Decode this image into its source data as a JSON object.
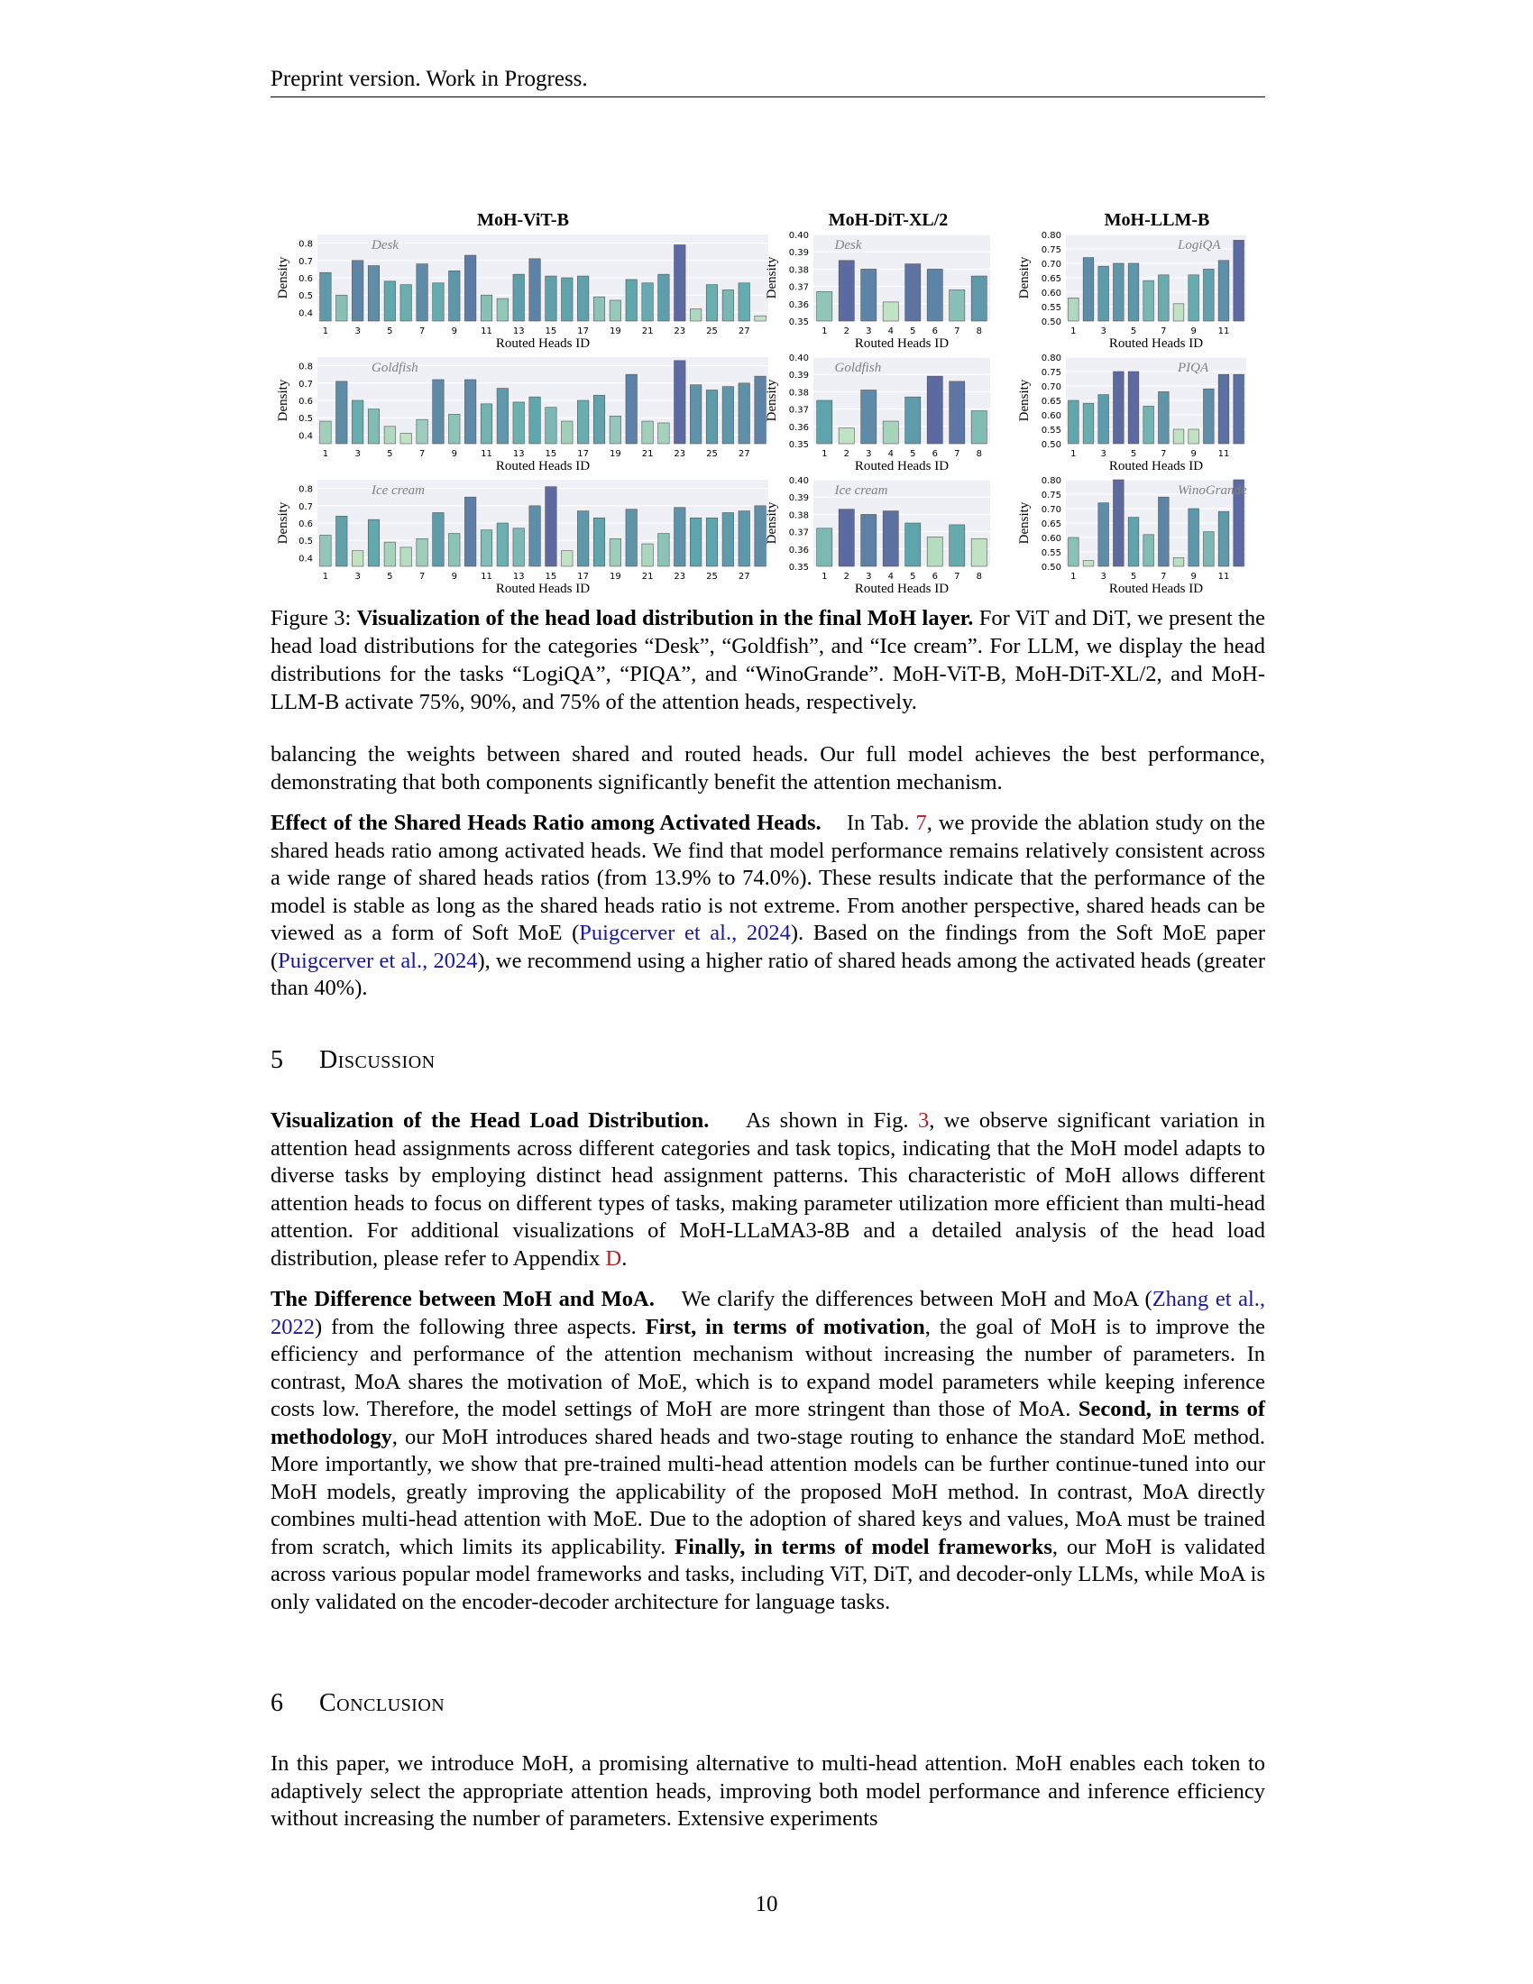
{
  "header": {
    "text": "Preprint version. Work in Progress."
  },
  "figure": {
    "xlabel": "Routed Heads ID",
    "ylabel": "Density",
    "column_titles": [
      "MoH-ViT-B",
      "MoH-DiT-XL/2",
      "MoH-LLM-B"
    ]
  },
  "chart_data": [
    {
      "type": "bar",
      "title": "MoH-ViT-B",
      "subtitle": "Desk",
      "xlabel": "Routed Heads ID",
      "ylabel": "Density",
      "x": [
        1,
        2,
        3,
        4,
        5,
        6,
        7,
        8,
        9,
        10,
        11,
        12,
        13,
        14,
        15,
        16,
        17,
        18,
        19,
        20,
        21,
        22,
        23,
        24,
        25,
        26,
        27,
        28
      ],
      "xticks": [
        "1",
        "3",
        "5",
        "7",
        "9",
        "11",
        "13",
        "15",
        "17",
        "19",
        "21",
        "23",
        "25",
        "27"
      ],
      "values": [
        0.63,
        0.5,
        0.7,
        0.67,
        0.58,
        0.56,
        0.68,
        0.57,
        0.64,
        0.73,
        0.5,
        0.48,
        0.62,
        0.71,
        0.61,
        0.6,
        0.61,
        0.49,
        0.47,
        0.59,
        0.57,
        0.62,
        0.79,
        0.42,
        0.56,
        0.53,
        0.57,
        0.38
      ],
      "ylim": [
        0.35,
        0.85
      ],
      "yticks": [
        0.4,
        0.5,
        0.6,
        0.7,
        0.8
      ]
    },
    {
      "type": "bar",
      "title": "MoH-DiT-XL/2",
      "subtitle": "Desk",
      "xlabel": "Routed Heads ID",
      "ylabel": "Density",
      "x": [
        1,
        2,
        3,
        4,
        5,
        6,
        7,
        8
      ],
      "xticks": [
        "1",
        "2",
        "3",
        "4",
        "5",
        "6",
        "7",
        "8"
      ],
      "values": [
        0.367,
        0.385,
        0.38,
        0.361,
        0.383,
        0.38,
        0.368,
        0.376
      ],
      "ylim": [
        0.35,
        0.4
      ],
      "yticks": [
        0.35,
        0.36,
        0.37,
        0.38,
        0.39,
        0.4
      ]
    },
    {
      "type": "bar",
      "title": "MoH-LLM-B",
      "subtitle": "LogiQA",
      "xlabel": "Routed Heads ID",
      "ylabel": "Density",
      "x": [
        1,
        2,
        3,
        4,
        5,
        6,
        7,
        8,
        9,
        10,
        11,
        12
      ],
      "xticks": [
        "1",
        "3",
        "5",
        "7",
        "9",
        "11"
      ],
      "values": [
        0.58,
        0.72,
        0.69,
        0.7,
        0.7,
        0.64,
        0.66,
        0.56,
        0.66,
        0.68,
        0.71,
        0.78
      ],
      "ylim": [
        0.5,
        0.8
      ],
      "yticks": [
        0.5,
        0.55,
        0.6,
        0.65,
        0.7,
        0.75,
        0.8
      ]
    },
    {
      "type": "bar",
      "title": "",
      "subtitle": "Goldfish",
      "xlabel": "Routed Heads ID",
      "ylabel": "Density",
      "x": [
        1,
        2,
        3,
        4,
        5,
        6,
        7,
        8,
        9,
        10,
        11,
        12,
        13,
        14,
        15,
        16,
        17,
        18,
        19,
        20,
        21,
        22,
        23,
        24,
        25,
        26,
        27,
        28
      ],
      "xticks": [
        "1",
        "3",
        "5",
        "7",
        "9",
        "11",
        "13",
        "15",
        "17",
        "19",
        "21",
        "23",
        "25",
        "27"
      ],
      "values": [
        0.48,
        0.71,
        0.6,
        0.55,
        0.45,
        0.41,
        0.49,
        0.72,
        0.52,
        0.72,
        0.58,
        0.67,
        0.59,
        0.62,
        0.56,
        0.48,
        0.6,
        0.63,
        0.51,
        0.75,
        0.48,
        0.47,
        0.83,
        0.69,
        0.66,
        0.68,
        0.7,
        0.74
      ],
      "ylim": [
        0.35,
        0.85
      ],
      "yticks": [
        0.4,
        0.5,
        0.6,
        0.7,
        0.8
      ]
    },
    {
      "type": "bar",
      "title": "",
      "subtitle": "Goldfish",
      "xlabel": "Routed Heads ID",
      "ylabel": "Density",
      "x": [
        1,
        2,
        3,
        4,
        5,
        6,
        7,
        8
      ],
      "xticks": [
        "1",
        "2",
        "3",
        "4",
        "5",
        "6",
        "7",
        "8"
      ],
      "values": [
        0.375,
        0.359,
        0.381,
        0.363,
        0.377,
        0.389,
        0.386,
        0.369
      ],
      "ylim": [
        0.35,
        0.4
      ],
      "yticks": [
        0.35,
        0.36,
        0.37,
        0.38,
        0.39,
        0.4
      ]
    },
    {
      "type": "bar",
      "title": "",
      "subtitle": "PIQA",
      "xlabel": "Routed Heads ID",
      "ylabel": "Density",
      "x": [
        1,
        2,
        3,
        4,
        5,
        6,
        7,
        8,
        9,
        10,
        11,
        12
      ],
      "xticks": [
        "1",
        "3",
        "5",
        "7",
        "9",
        "11"
      ],
      "values": [
        0.65,
        0.64,
        0.67,
        0.75,
        0.75,
        0.63,
        0.68,
        0.55,
        0.55,
        0.69,
        0.74,
        0.74
      ],
      "ylim": [
        0.5,
        0.8
      ],
      "yticks": [
        0.5,
        0.55,
        0.6,
        0.65,
        0.7,
        0.75,
        0.8
      ]
    },
    {
      "type": "bar",
      "title": "",
      "subtitle": "Ice cream",
      "xlabel": "Routed Heads ID",
      "ylabel": "Density",
      "x": [
        1,
        2,
        3,
        4,
        5,
        6,
        7,
        8,
        9,
        10,
        11,
        12,
        13,
        14,
        15,
        16,
        17,
        18,
        19,
        20,
        21,
        22,
        23,
        24,
        25,
        26,
        27,
        28
      ],
      "xticks": [
        "1",
        "3",
        "5",
        "7",
        "9",
        "11",
        "13",
        "15",
        "17",
        "19",
        "21",
        "23",
        "25",
        "27"
      ],
      "values": [
        0.53,
        0.64,
        0.44,
        0.62,
        0.49,
        0.46,
        0.51,
        0.66,
        0.54,
        0.75,
        0.56,
        0.6,
        0.57,
        0.7,
        0.81,
        0.44,
        0.67,
        0.63,
        0.51,
        0.68,
        0.48,
        0.54,
        0.69,
        0.63,
        0.63,
        0.66,
        0.67,
        0.7
      ],
      "ylim": [
        0.35,
        0.85
      ],
      "yticks": [
        0.4,
        0.5,
        0.6,
        0.7,
        0.8
      ]
    },
    {
      "type": "bar",
      "title": "",
      "subtitle": "Ice cream",
      "xlabel": "Routed Heads ID",
      "ylabel": "Density",
      "x": [
        1,
        2,
        3,
        4,
        5,
        6,
        7,
        8
      ],
      "xticks": [
        "1",
        "2",
        "3",
        "4",
        "5",
        "6",
        "7",
        "8"
      ],
      "values": [
        0.372,
        0.383,
        0.38,
        0.382,
        0.375,
        0.367,
        0.374,
        0.366
      ],
      "ylim": [
        0.35,
        0.4
      ],
      "yticks": [
        0.35,
        0.36,
        0.37,
        0.38,
        0.39,
        0.4
      ]
    },
    {
      "type": "bar",
      "title": "",
      "subtitle": "WinoGrande",
      "xlabel": "Routed Heads ID",
      "ylabel": "Density",
      "x": [
        1,
        2,
        3,
        4,
        5,
        6,
        7,
        8,
        9,
        10,
        11,
        12
      ],
      "xticks": [
        "1",
        "3",
        "5",
        "7",
        "9",
        "11"
      ],
      "values": [
        0.6,
        0.52,
        0.72,
        0.8,
        0.67,
        0.61,
        0.74,
        0.53,
        0.7,
        0.62,
        0.69,
        0.8
      ],
      "ylim": [
        0.5,
        0.8
      ],
      "yticks": [
        0.5,
        0.55,
        0.6,
        0.65,
        0.7,
        0.75,
        0.8
      ]
    }
  ],
  "caption": {
    "label": "Figure 3:",
    "bold": "Visualization of the head load distribution in the final MoH layer.",
    "text": "For ViT and DiT, we present the head load distributions for the categories “Desk”, “Goldfish”, and “Ice cream”. For LLM, we display the head distributions for the tasks “LogiQA”, “PIQA”, and “WinoGrande”. MoH-ViT-B, MoH-DiT-XL/2, and MoH-LLM-B activate 75%, 90%, and 75% of the attention heads, respectively."
  },
  "p0": {
    "text": "balancing the weights between shared and routed heads. Our full model achieves the best performance, demonstrating that both components significantly benefit the attention mechanism."
  },
  "p1": {
    "bold": "Effect of the Shared Heads Ratio among Activated Heads.",
    "t1": "In Tab.",
    "ref_tab": "7",
    "t2": ", we provide the ablation study on the shared heads ratio among activated heads. We find that model performance remains relatively consistent across a wide range of shared heads ratios (from 13.9% to 74.0%). These results indicate that the performance of the model is stable as long as the shared heads ratio is not extreme. From another perspective, shared heads can be viewed as a form of Soft MoE (",
    "cite1": "Puigcerver et al., 2024",
    "t3": "). Based on the findings from the Soft MoE paper (",
    "cite2": "Puigcerver et al., 2024",
    "t4": "), we recommend using a higher ratio of shared heads among the activated heads (greater than 40%)."
  },
  "sec5": {
    "num": "5",
    "title": "Discussion"
  },
  "p2": {
    "bold": "Visualization of the Head Load Distribution.",
    "t1": "As shown in Fig.",
    "ref_fig": "3",
    "t2": ", we observe significant variation in attention head assignments across different categories and task topics, indicating that the MoH model adapts to diverse tasks by employing distinct head assignment patterns. This characteristic of MoH allows different attention heads to focus on different types of tasks, making parameter utilization more efficient than multi-head attention. For additional visualizations of MoH-LLaMA3-8B and a detailed analysis of the head load distribution, please refer to Appendix",
    "ref_app": "D",
    "t3": "."
  },
  "p3": {
    "bold": "The Difference between MoH and MoA.",
    "t1": "We clarify the differences between MoH and MoA (",
    "cite": "Zhang et al., 2022",
    "t2": ") from the following three aspects.",
    "b1": "First, in terms of motivation",
    "t3": ", the goal of MoH is to improve the efficiency and performance of the attention mechanism without increasing the number of parameters. In contrast, MoA shares the motivation of MoE, which is to expand model parameters while keeping inference costs low. Therefore, the model settings of MoH are more stringent than those of MoA.",
    "b2": "Second, in terms of methodology",
    "t4": ", our MoH introduces shared heads and two-stage routing to enhance the standard MoE method. More importantly, we show that pre-trained multi-head attention models can be further continue-tuned into our MoH models, greatly improving the applicability of the proposed MoH method. In contrast, MoA directly combines multi-head attention with MoE. Due to the adoption of shared keys and values, MoA must be trained from scratch, which limits its applicability.",
    "b3": "Finally, in terms of model frameworks",
    "t5": ", our MoH is validated across various popular model frameworks and tasks, including ViT, DiT, and decoder-only LLMs, while MoA is only validated on the encoder-decoder architecture for language tasks."
  },
  "sec6": {
    "num": "6",
    "title": "Conclusion"
  },
  "p4": {
    "text": "In this paper, we introduce MoH, a promising alternative to multi-head attention. MoH enables each token to adaptively select the appropriate attention heads, improving both model performance and inference efficiency without increasing the number of parameters. Extensive experiments"
  },
  "footer": {
    "page_number": "10"
  },
  "colors": {
    "bar_low": "#c2e3c3",
    "bar_mid": "#5fa7ad",
    "bar_high": "#5c6aa1",
    "panel_bg": "#eef0f6",
    "cite": "#1a1a9c",
    "ref": "#b22222"
  }
}
